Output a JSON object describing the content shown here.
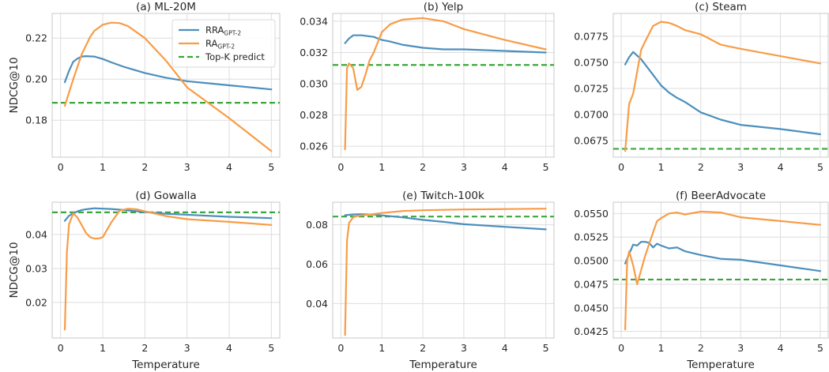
{
  "shared": {
    "ylabel": "NDCG@10",
    "xlabel": "Temperature",
    "x_ticks": [
      0,
      1,
      2,
      3,
      4,
      5
    ],
    "legend": {
      "rra_main": "RRA",
      "rra_sub": "GPT-2",
      "ra_main": "RA",
      "ra_sub": "GPT-2",
      "topk": "Top-K predict"
    }
  },
  "colors": {
    "rra": "#4c8fbd",
    "ra": "#f89c47",
    "topk": "#3aa63a",
    "grid": "#dddddd",
    "frame": "#c8c8c8"
  },
  "chart_data": [
    {
      "type": "line",
      "title": "(a) ML-20M",
      "xlim": [
        -0.2,
        5.2
      ],
      "ylim": [
        0.162,
        0.232
      ],
      "y_ticks": [
        0.18,
        0.2,
        0.22
      ],
      "y_tick_labels": [
        "0.18",
        "0.20",
        "0.22"
      ],
      "ylabel": "NDCG@10",
      "xlabel": "",
      "legend": "top-right",
      "topk": 0.1885,
      "series": [
        {
          "key": "rra",
          "name": "RRA GPT-2",
          "x": [
            0.1,
            0.2,
            0.3,
            0.4,
            0.5,
            0.6,
            0.8,
            1.0,
            1.2,
            1.5,
            2.0,
            2.5,
            3.0,
            4.0,
            5.0
          ],
          "y": [
            0.1985,
            0.204,
            0.2085,
            0.21,
            0.211,
            0.2112,
            0.211,
            0.2098,
            0.2082,
            0.206,
            0.203,
            0.2007,
            0.199,
            0.197,
            0.195
          ]
        },
        {
          "key": "ra",
          "name": "RA GPT-2",
          "x": [
            0.1,
            0.3,
            0.5,
            0.7,
            0.8,
            1.0,
            1.2,
            1.4,
            1.6,
            2.0,
            2.5,
            3.0,
            4.0,
            5.0
          ],
          "y": [
            0.187,
            0.2,
            0.212,
            0.2205,
            0.2235,
            0.2265,
            0.2275,
            0.2273,
            0.2258,
            0.22,
            0.209,
            0.196,
            0.181,
            0.165
          ]
        }
      ]
    },
    {
      "type": "line",
      "title": "(b) Yelp",
      "xlim": [
        -0.2,
        5.2
      ],
      "ylim": [
        0.0253,
        0.0345
      ],
      "y_ticks": [
        0.026,
        0.028,
        0.03,
        0.032,
        0.034
      ],
      "y_tick_labels": [
        "0.026",
        "0.028",
        "0.030",
        "0.032",
        "0.034"
      ],
      "ylabel": "",
      "xlabel": "",
      "topk": 0.0312,
      "series": [
        {
          "key": "rra",
          "name": "RRA GPT-2",
          "x": [
            0.1,
            0.2,
            0.3,
            0.5,
            0.8,
            1.0,
            1.2,
            1.5,
            2.0,
            2.5,
            3.0,
            4.0,
            5.0
          ],
          "y": [
            0.0326,
            0.0329,
            0.0331,
            0.0331,
            0.033,
            0.0328,
            0.0327,
            0.0325,
            0.0323,
            0.0322,
            0.0322,
            0.0321,
            0.032
          ]
        },
        {
          "key": "ra",
          "name": "RA GPT-2",
          "x": [
            0.1,
            0.15,
            0.2,
            0.3,
            0.4,
            0.5,
            0.6,
            0.7,
            0.8,
            1.0,
            1.2,
            1.5,
            2.0,
            2.5,
            3.0,
            4.0,
            5.0
          ],
          "y": [
            0.0258,
            0.031,
            0.0313,
            0.031,
            0.0296,
            0.0298,
            0.0306,
            0.0315,
            0.032,
            0.0333,
            0.0338,
            0.0341,
            0.0342,
            0.034,
            0.0335,
            0.0328,
            0.0322
          ]
        }
      ]
    },
    {
      "type": "line",
      "title": "(c) Steam",
      "xlim": [
        -0.2,
        5.2
      ],
      "ylim": [
        0.0659,
        0.0797
      ],
      "y_ticks": [
        0.0675,
        0.07,
        0.0725,
        0.075,
        0.0775
      ],
      "y_tick_labels": [
        "0.0675",
        "0.0700",
        "0.0725",
        "0.0750",
        "0.0775"
      ],
      "ylabel": "",
      "xlabel": "",
      "topk": 0.0667,
      "series": [
        {
          "key": "rra",
          "name": "RRA GPT-2",
          "x": [
            0.1,
            0.2,
            0.3,
            0.5,
            0.8,
            1.0,
            1.2,
            1.4,
            1.6,
            2.0,
            2.5,
            3.0,
            4.0,
            5.0
          ],
          "y": [
            0.0748,
            0.0755,
            0.076,
            0.0753,
            0.0738,
            0.0728,
            0.0721,
            0.0716,
            0.0712,
            0.0702,
            0.0695,
            0.069,
            0.0686,
            0.0681
          ]
        },
        {
          "key": "ra",
          "name": "RA GPT-2",
          "x": [
            0.1,
            0.2,
            0.3,
            0.5,
            0.6,
            0.8,
            1.0,
            1.2,
            1.4,
            1.6,
            2.0,
            2.5,
            3.0,
            4.0,
            5.0
          ],
          "y": [
            0.0665,
            0.071,
            0.072,
            0.0762,
            0.077,
            0.0785,
            0.0789,
            0.0788,
            0.0785,
            0.0781,
            0.0777,
            0.0767,
            0.0763,
            0.0756,
            0.0749
          ]
        }
      ]
    },
    {
      "type": "line",
      "title": "(d) Gowalla",
      "xlim": [
        -0.2,
        5.2
      ],
      "ylim": [
        0.0095,
        0.0495
      ],
      "y_ticks": [
        0.02,
        0.03,
        0.04
      ],
      "y_tick_labels": [
        "0.02",
        "0.03",
        "0.04"
      ],
      "ylabel": "NDCG@10",
      "xlabel": "Temperature",
      "topk": 0.0465,
      "series": [
        {
          "key": "rra",
          "name": "RRA GPT-2",
          "x": [
            0.1,
            0.2,
            0.3,
            0.4,
            0.5,
            0.6,
            0.8,
            1.0,
            1.2,
            1.5,
            2.0,
            2.5,
            3.0,
            4.0,
            5.0
          ],
          "y": [
            0.044,
            0.0455,
            0.0462,
            0.0468,
            0.0472,
            0.0474,
            0.0477,
            0.0476,
            0.0475,
            0.0472,
            0.0466,
            0.0461,
            0.0458,
            0.0452,
            0.0448
          ]
        },
        {
          "key": "ra",
          "name": "RA GPT-2",
          "x": [
            0.1,
            0.15,
            0.2,
            0.3,
            0.4,
            0.5,
            0.6,
            0.7,
            0.8,
            0.9,
            1.0,
            1.2,
            1.4,
            1.6,
            1.8,
            2.0,
            2.5,
            3.0,
            4.0,
            5.0
          ],
          "y": [
            0.012,
            0.035,
            0.043,
            0.0462,
            0.045,
            0.0428,
            0.0405,
            0.0392,
            0.0388,
            0.0388,
            0.0392,
            0.0435,
            0.047,
            0.0476,
            0.0474,
            0.0468,
            0.0454,
            0.0445,
            0.0437,
            0.0428
          ]
        }
      ]
    },
    {
      "type": "line",
      "title": "(e) Twitch-100k",
      "xlim": [
        -0.2,
        5.2
      ],
      "ylim": [
        0.0225,
        0.0915
      ],
      "y_ticks": [
        0.04,
        0.06,
        0.08
      ],
      "y_tick_labels": [
        "0.04",
        "0.06",
        "0.08"
      ],
      "ylabel": "",
      "xlabel": "Temperature",
      "topk": 0.0842,
      "series": [
        {
          "key": "rra",
          "name": "RRA GPT-2",
          "x": [
            0.1,
            0.3,
            0.5,
            0.8,
            1.0,
            1.5,
            2.0,
            2.5,
            3.0,
            4.0,
            5.0
          ],
          "y": [
            0.0849,
            0.0853,
            0.0854,
            0.0852,
            0.0848,
            0.0838,
            0.0825,
            0.0815,
            0.0803,
            0.079,
            0.0777
          ]
        },
        {
          "key": "ra",
          "name": "RA GPT-2",
          "x": [
            0.1,
            0.15,
            0.2,
            0.3,
            0.4,
            0.5,
            0.6,
            0.8,
            1.0,
            1.5,
            2.0,
            3.0,
            4.0,
            5.0
          ],
          "y": [
            0.024,
            0.072,
            0.081,
            0.0838,
            0.0845,
            0.0848,
            0.085,
            0.0855,
            0.086,
            0.087,
            0.0874,
            0.0878,
            0.088,
            0.0882
          ]
        }
      ]
    },
    {
      "type": "line",
      "title": "(f) BeerAdvocate",
      "xlim": [
        -0.2,
        5.2
      ],
      "ylim": [
        0.0418,
        0.0562
      ],
      "y_ticks": [
        0.0425,
        0.045,
        0.0475,
        0.05,
        0.0525,
        0.055
      ],
      "y_tick_labels": [
        "0.0425",
        "0.0450",
        "0.0475",
        "0.0500",
        "0.0525",
        "0.0550"
      ],
      "ylabel": "",
      "xlabel": "Temperature",
      "topk": 0.048,
      "series": [
        {
          "key": "rra",
          "name": "RRA GPT-2",
          "x": [
            0.1,
            0.2,
            0.3,
            0.4,
            0.5,
            0.6,
            0.7,
            0.8,
            0.9,
            1.0,
            1.2,
            1.4,
            1.6,
            2.0,
            2.5,
            3.0,
            4.0,
            5.0
          ],
          "y": [
            0.0497,
            0.0507,
            0.0517,
            0.0516,
            0.052,
            0.052,
            0.0519,
            0.0514,
            0.0518,
            0.0516,
            0.0513,
            0.0514,
            0.051,
            0.0506,
            0.0502,
            0.0501,
            0.0495,
            0.0489
          ]
        },
        {
          "key": "ra",
          "name": "RA GPT-2",
          "x": [
            0.1,
            0.15,
            0.2,
            0.3,
            0.4,
            0.5,
            0.6,
            0.8,
            0.9,
            1.0,
            1.2,
            1.4,
            1.6,
            2.0,
            2.5,
            3.0,
            4.0,
            5.0
          ],
          "y": [
            0.0427,
            0.05,
            0.051,
            0.0495,
            0.0475,
            0.049,
            0.0505,
            0.053,
            0.0542,
            0.0545,
            0.055,
            0.0551,
            0.0549,
            0.0552,
            0.0551,
            0.0546,
            0.0542,
            0.0538
          ]
        }
      ]
    }
  ]
}
